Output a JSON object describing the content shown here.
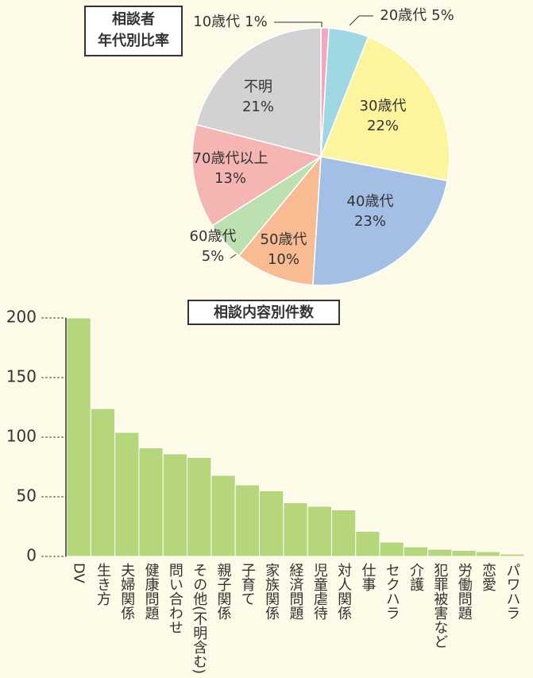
{
  "chart_data": [
    {
      "type": "pie",
      "title": [
        "相談者",
        "年代別比率"
      ],
      "categories": [
        "10歳代",
        "20歳代",
        "30歳代",
        "40歳代",
        "50歳代",
        "60歳代",
        "70歳代以上",
        "不明"
      ],
      "values": [
        1,
        5,
        22,
        23,
        10,
        5,
        13,
        21
      ],
      "value_labels": [
        "1%",
        "5%",
        "22%",
        "23%",
        "10%",
        "5%",
        "13%",
        "21%"
      ],
      "colors": [
        "#f2a8c2",
        "#9fd8e2",
        "#fdf59e",
        "#a3bfe5",
        "#f8bb92",
        "#bde0b0",
        "#f5b6b3",
        "#d2d2d2"
      ]
    },
    {
      "type": "bar",
      "title": "相談内容別件数",
      "categories": [
        "DV",
        "生き方",
        "夫婦関係",
        "健康問題",
        "問い合わせ",
        "その他(不明含む)",
        "親子関係",
        "子育て",
        "家族関係",
        "経済問題",
        "児童虐待",
        "対人関係",
        "仕事",
        "セクハラ",
        "介護",
        "犯罪被害など",
        "労働問題",
        "恋愛",
        "パワハラ"
      ],
      "values": [
        200,
        124,
        104,
        91,
        86,
        83,
        68,
        60,
        55,
        45,
        42,
        39,
        21,
        12,
        8,
        6,
        5,
        4,
        2
      ],
      "color": "#b5d67a",
      "ylim": [
        0,
        200
      ],
      "yticks": [
        0,
        50,
        100,
        150,
        200
      ]
    }
  ]
}
